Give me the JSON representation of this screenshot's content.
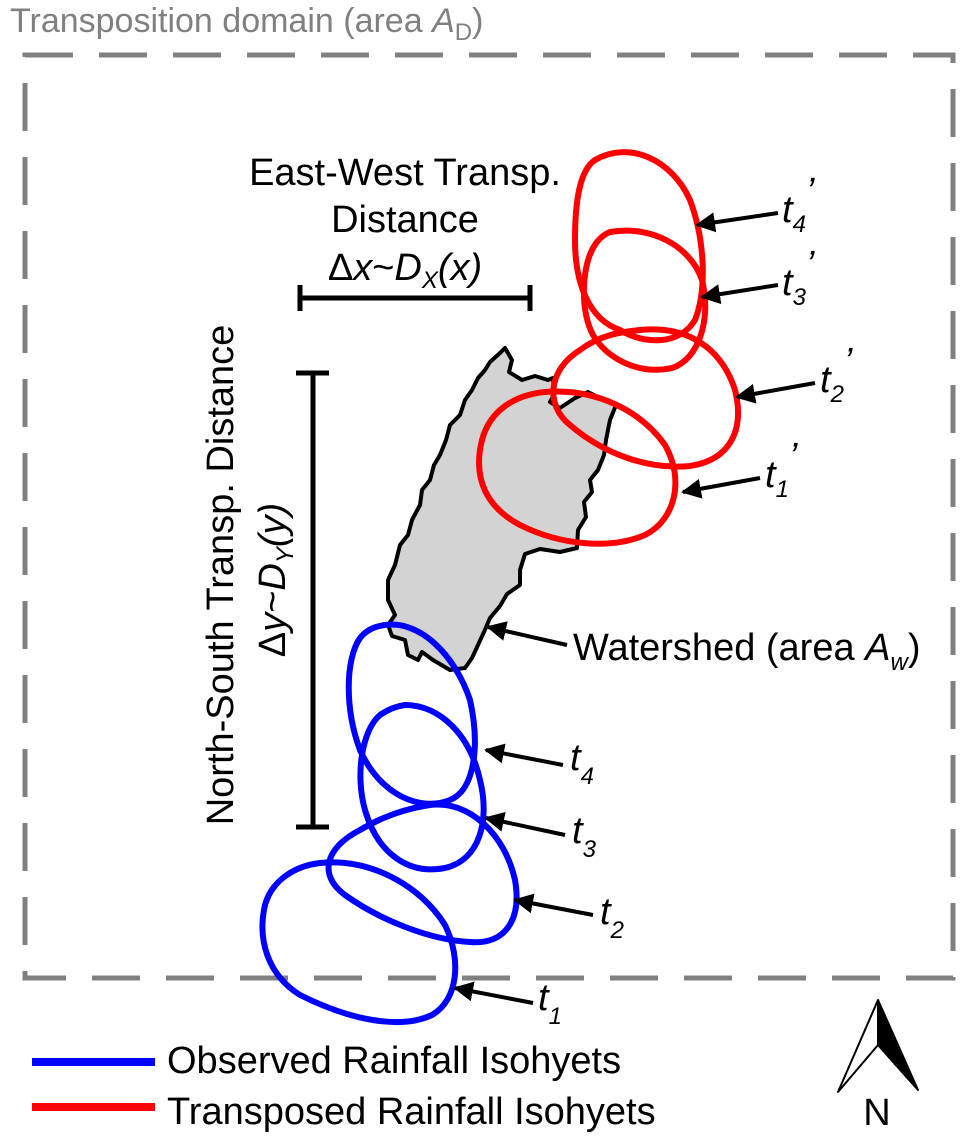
{
  "domain_box": {
    "title": "Transposition domain (area ",
    "title_var": "A",
    "title_sub": "D",
    "title_close": ")",
    "color": "#808080"
  },
  "east_west": {
    "line1": "East-West Transp.",
    "line2": "Distance",
    "formula_delta": "Δ",
    "formula_x": "x",
    "formula_tilde": "~",
    "formula_D": "D",
    "formula_sub": "X",
    "formula_arg": "(x)"
  },
  "north_south": {
    "label": "North-South Transp. Distance",
    "formula_delta": "Δ",
    "formula_y": "y",
    "formula_tilde": "~",
    "formula_D": "D",
    "formula_sub": "Y",
    "formula_arg": "(y)"
  },
  "watershed": {
    "label": "Watershed (area ",
    "label_var": "A",
    "label_sub": "w",
    "label_close": ")",
    "fill": "#d3d3d3",
    "stroke": "#000000"
  },
  "observed_times": [
    {
      "var": "t",
      "sub": "4"
    },
    {
      "var": "t",
      "sub": "3"
    },
    {
      "var": "t",
      "sub": "2"
    },
    {
      "var": "t",
      "sub": "1"
    }
  ],
  "transposed_times": [
    {
      "var": "t",
      "sub": "4",
      "prime": "’"
    },
    {
      "var": "t",
      "sub": "3",
      "prime": "’"
    },
    {
      "var": "t",
      "sub": "2",
      "prime": "’"
    },
    {
      "var": "t",
      "sub": "1",
      "prime": "’"
    }
  ],
  "legend": {
    "observed": {
      "label": "Observed Rainfall Isohyets",
      "color": "#0000ff"
    },
    "transposed": {
      "label": "Transposed Rainfall Isohyets",
      "color": "#ff0000"
    }
  },
  "north_arrow": {
    "label": "N"
  }
}
